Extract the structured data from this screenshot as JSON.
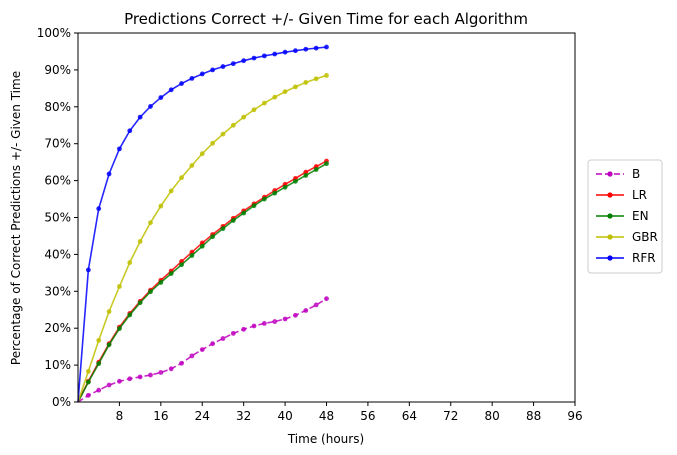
{
  "chart_data": {
    "type": "line",
    "title": "Predictions Correct +/- Given Time for each Algorithm",
    "xlabel": "Time (hours)",
    "ylabel": "Percentage of Correct Predictions +/- Given Time",
    "xlim": [
      0,
      96
    ],
    "ylim": [
      0,
      100
    ],
    "x_ticks": [
      "8",
      "16",
      "24",
      "32",
      "40",
      "48",
      "56",
      "64",
      "72",
      "80",
      "88",
      "96"
    ],
    "y_ticks": [
      "0%",
      "10%",
      "20%",
      "30%",
      "40%",
      "50%",
      "60%",
      "70%",
      "80%",
      "90%",
      "100%"
    ],
    "grid": false,
    "legend_position": "right-outside",
    "x": [
      0,
      2,
      4,
      6,
      8,
      10,
      12,
      14,
      16,
      18,
      20,
      22,
      24,
      26,
      28,
      30,
      32,
      34,
      36,
      38,
      40,
      42,
      44,
      46,
      48
    ],
    "series": [
      {
        "name": "B",
        "color": "#bf00bf",
        "linestyle": "dashed",
        "values": [
          0,
          1.8,
          3.2,
          4.6,
          5.6,
          6.3,
          6.8,
          7.3,
          8.0,
          9.0,
          10.5,
          12.5,
          14.2,
          15.8,
          17.2,
          18.6,
          19.7,
          20.6,
          21.3,
          21.8,
          22.5,
          23.5,
          24.8,
          26.3,
          28.0
        ]
      },
      {
        "name": "LR",
        "color": "#ff0000",
        "linestyle": "solid",
        "values": [
          0,
          5.6,
          10.8,
          15.8,
          20.3,
          24.0,
          27.3,
          30.3,
          33.0,
          35.5,
          38.1,
          40.6,
          43.1,
          45.4,
          47.6,
          49.8,
          51.8,
          53.7,
          55.5,
          57.3,
          59.0,
          60.6,
          62.3,
          63.8,
          65.3
        ]
      },
      {
        "name": "EN",
        "color": "#008000",
        "linestyle": "solid",
        "values": [
          0,
          5.4,
          10.4,
          15.5,
          19.9,
          23.6,
          26.9,
          29.9,
          32.4,
          34.8,
          37.2,
          39.7,
          42.2,
          44.8,
          47.0,
          49.2,
          51.2,
          53.2,
          55.0,
          56.6,
          58.2,
          59.8,
          61.4,
          63.0,
          64.6
        ]
      },
      {
        "name": "GBR",
        "color": "#bfbf00",
        "linestyle": "solid",
        "values": [
          0,
          8.3,
          16.7,
          24.5,
          31.3,
          37.8,
          43.5,
          48.6,
          53.1,
          57.2,
          60.8,
          64.1,
          67.3,
          70.1,
          72.6,
          75.0,
          77.2,
          79.2,
          81.0,
          82.6,
          84.1,
          85.4,
          86.6,
          87.6,
          88.5
        ]
      },
      {
        "name": "RFR",
        "color": "#0000ff",
        "linestyle": "solid",
        "values": [
          0,
          35.8,
          52.4,
          61.8,
          68.6,
          73.5,
          77.2,
          80.1,
          82.5,
          84.6,
          86.3,
          87.7,
          88.9,
          90.0,
          90.9,
          91.7,
          92.5,
          93.2,
          93.8,
          94.3,
          94.8,
          95.2,
          95.6,
          95.9,
          96.2
        ]
      }
    ]
  }
}
